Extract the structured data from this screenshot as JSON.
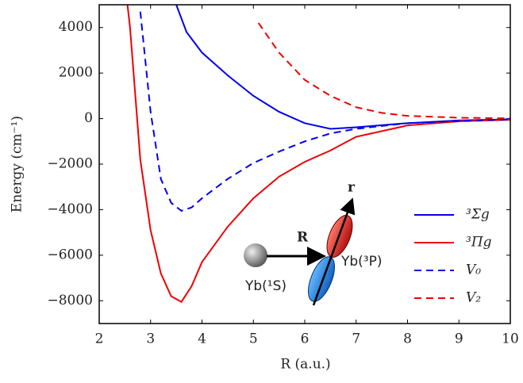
{
  "chart_data": {
    "type": "line",
    "xlabel": "R (a.u.)",
    "ylabel": "Energy (cm⁻¹)",
    "xlim": [
      2,
      10
    ],
    "ylim": [
      -9000,
      5000
    ],
    "xticks": [
      2,
      3,
      4,
      5,
      6,
      7,
      8,
      9,
      10
    ],
    "yticks": [
      {
        "value": -8000,
        "label": "−8000"
      },
      {
        "value": -6000,
        "label": "−6000"
      },
      {
        "value": -4000,
        "label": "−4000"
      },
      {
        "value": -2000,
        "label": "−2000"
      },
      0,
      2000,
      4000
    ],
    "legend": "lower right",
    "annotations": [
      "R",
      "r",
      "Yb(¹S)",
      "Yb(³P)"
    ],
    "series": [
      {
        "name": "³Σg",
        "color": "#0000ee",
        "dash": false,
        "x": [
          3.5,
          3.7,
          4,
          4.5,
          5,
          5.5,
          6,
          6.5,
          7,
          8,
          9,
          10
        ],
        "values": [
          5000,
          3800,
          2900,
          1900,
          1000,
          300,
          -200,
          -450,
          -380,
          -200,
          -80,
          -30
        ]
      },
      {
        "name": "³Πg",
        "color": "#ee0000",
        "dash": false,
        "x": [
          2.55,
          2.6,
          2.8,
          3,
          3.2,
          3.4,
          3.6,
          3.8,
          4,
          4.5,
          5,
          5.5,
          6,
          6.5,
          7,
          8,
          9,
          10
        ],
        "values": [
          5000,
          4000,
          -1800,
          -4900,
          -6800,
          -7800,
          -8050,
          -7350,
          -6300,
          -4750,
          -3500,
          -2550,
          -1900,
          -1400,
          -800,
          -300,
          -120,
          -50
        ]
      },
      {
        "name": "V₀",
        "color": "#0000ee",
        "dash": true,
        "x": [
          2.8,
          3,
          3.2,
          3.4,
          3.6,
          3.8,
          4,
          4.5,
          5,
          5.5,
          6,
          6.5,
          7,
          8,
          9,
          10
        ],
        "values": [
          4700,
          300,
          -2650,
          -3700,
          -4050,
          -3900,
          -3500,
          -2650,
          -1950,
          -1450,
          -1000,
          -650,
          -450,
          -200,
          -100,
          -40
        ]
      },
      {
        "name": "V₂",
        "color": "#ee0000",
        "dash": true,
        "x": [
          5.1,
          5.5,
          6,
          6.5,
          7,
          7.5,
          8,
          9,
          10
        ],
        "values": [
          4200,
          2900,
          1700,
          1000,
          500,
          250,
          120,
          40,
          10
        ]
      }
    ]
  }
}
